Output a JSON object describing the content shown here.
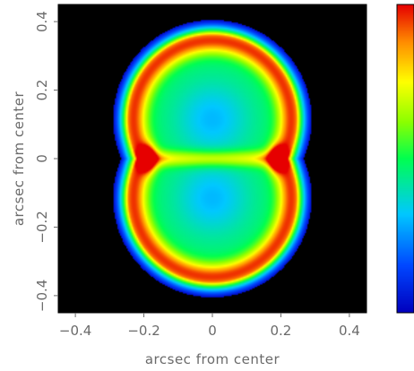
{
  "chart_data": {
    "type": "heatmap",
    "title": "",
    "xlabel": "arcsec from  center",
    "ylabel": "arcsec from  center",
    "xlim": [
      -0.45,
      0.45
    ],
    "ylim": [
      -0.45,
      0.45
    ],
    "x_ticks": [
      -0.4,
      -0.2,
      0,
      0.2,
      0.4
    ],
    "y_ticks": [
      -0.4,
      -0.2,
      0,
      0.2,
      0.4
    ],
    "x_tick_labels": [
      "−0.4",
      "−0.2",
      "0",
      "0.2",
      "0.4"
    ],
    "y_tick_labels": [
      "−0.4",
      "−0.2",
      "0",
      "0.2",
      "0.4"
    ],
    "background_color": "#000000",
    "colormap": "rainbow (blue low → red high)",
    "colorbar": "right, unlabeled",
    "structure": {
      "description": "two overlapping circular lobes above and below center",
      "lobe_centers": [
        [
          0,
          0.115
        ],
        [
          0,
          -0.115
        ]
      ],
      "outer_radius": 0.29,
      "ring_peak_radius": 0.23,
      "bright_spots": [
        [
          -0.19,
          0
        ],
        [
          0.19,
          0
        ]
      ]
    }
  }
}
